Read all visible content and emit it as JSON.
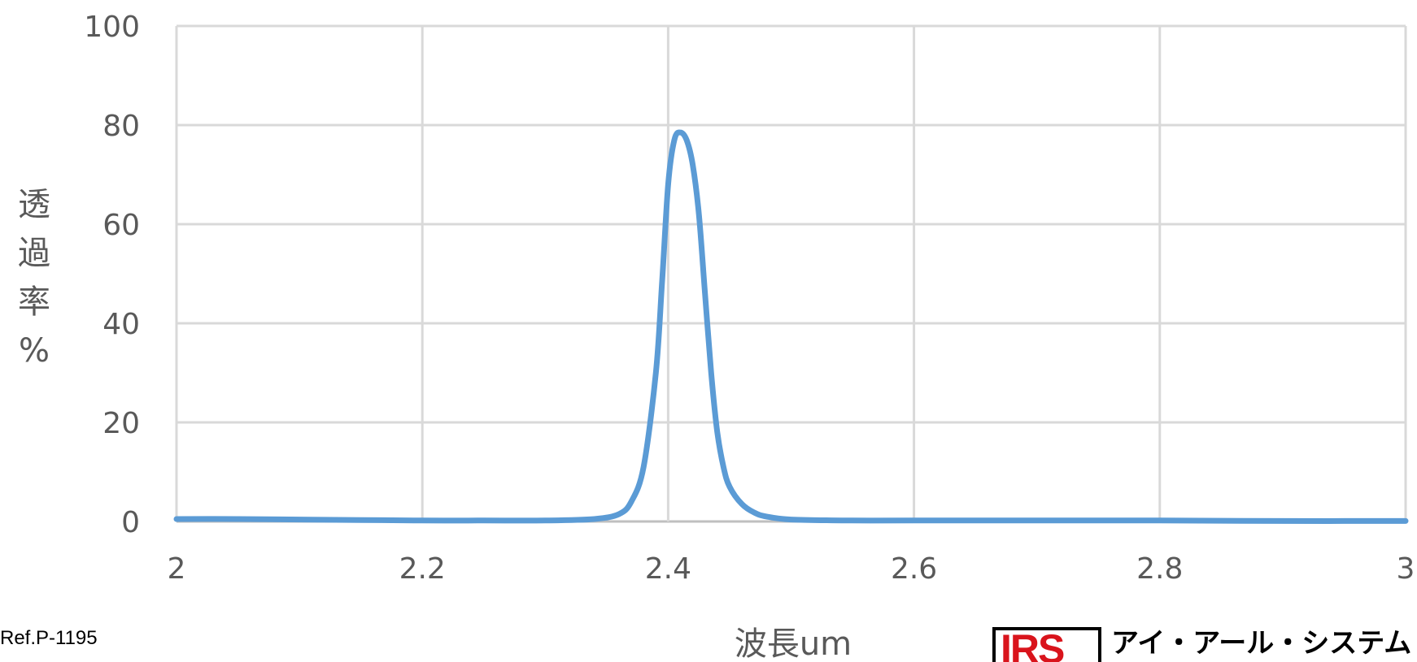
{
  "chart_data": {
    "type": "line",
    "xlabel": "波長um",
    "ylabel": "透過率%",
    "xlim": [
      2,
      3
    ],
    "ylim": [
      0,
      100
    ],
    "xticks": [
      "2",
      "2.2",
      "2.4",
      "2.6",
      "2.8",
      "3"
    ],
    "yticks": [
      "0",
      "20",
      "40",
      "60",
      "80",
      "100"
    ],
    "grid": true,
    "series": [
      {
        "color": "#5b9bd5",
        "x": [
          2.0,
          2.05,
          2.1,
          2.15,
          2.2,
          2.25,
          2.3,
          2.34,
          2.36,
          2.37,
          2.38,
          2.39,
          2.395,
          2.4,
          2.405,
          2.41,
          2.415,
          2.42,
          2.425,
          2.43,
          2.435,
          2.44,
          2.445,
          2.45,
          2.46,
          2.47,
          2.48,
          2.5,
          2.55,
          2.6,
          2.7,
          2.8,
          2.9,
          3.0
        ],
        "y": [
          0.5,
          0.5,
          0.4,
          0.3,
          0.2,
          0.2,
          0.2,
          0.5,
          1.5,
          4,
          11,
          30,
          48,
          68,
          77,
          78.5,
          77,
          72,
          62,
          46,
          30,
          18,
          11,
          7,
          3.5,
          1.8,
          1,
          0.4,
          0.2,
          0.2,
          0.2,
          0.2,
          0.1,
          0.1
        ]
      }
    ]
  },
  "ref_label": "Ref.P-1195",
  "logo": {
    "mark": "IRS",
    "company": "アイ・アール・システム"
  }
}
